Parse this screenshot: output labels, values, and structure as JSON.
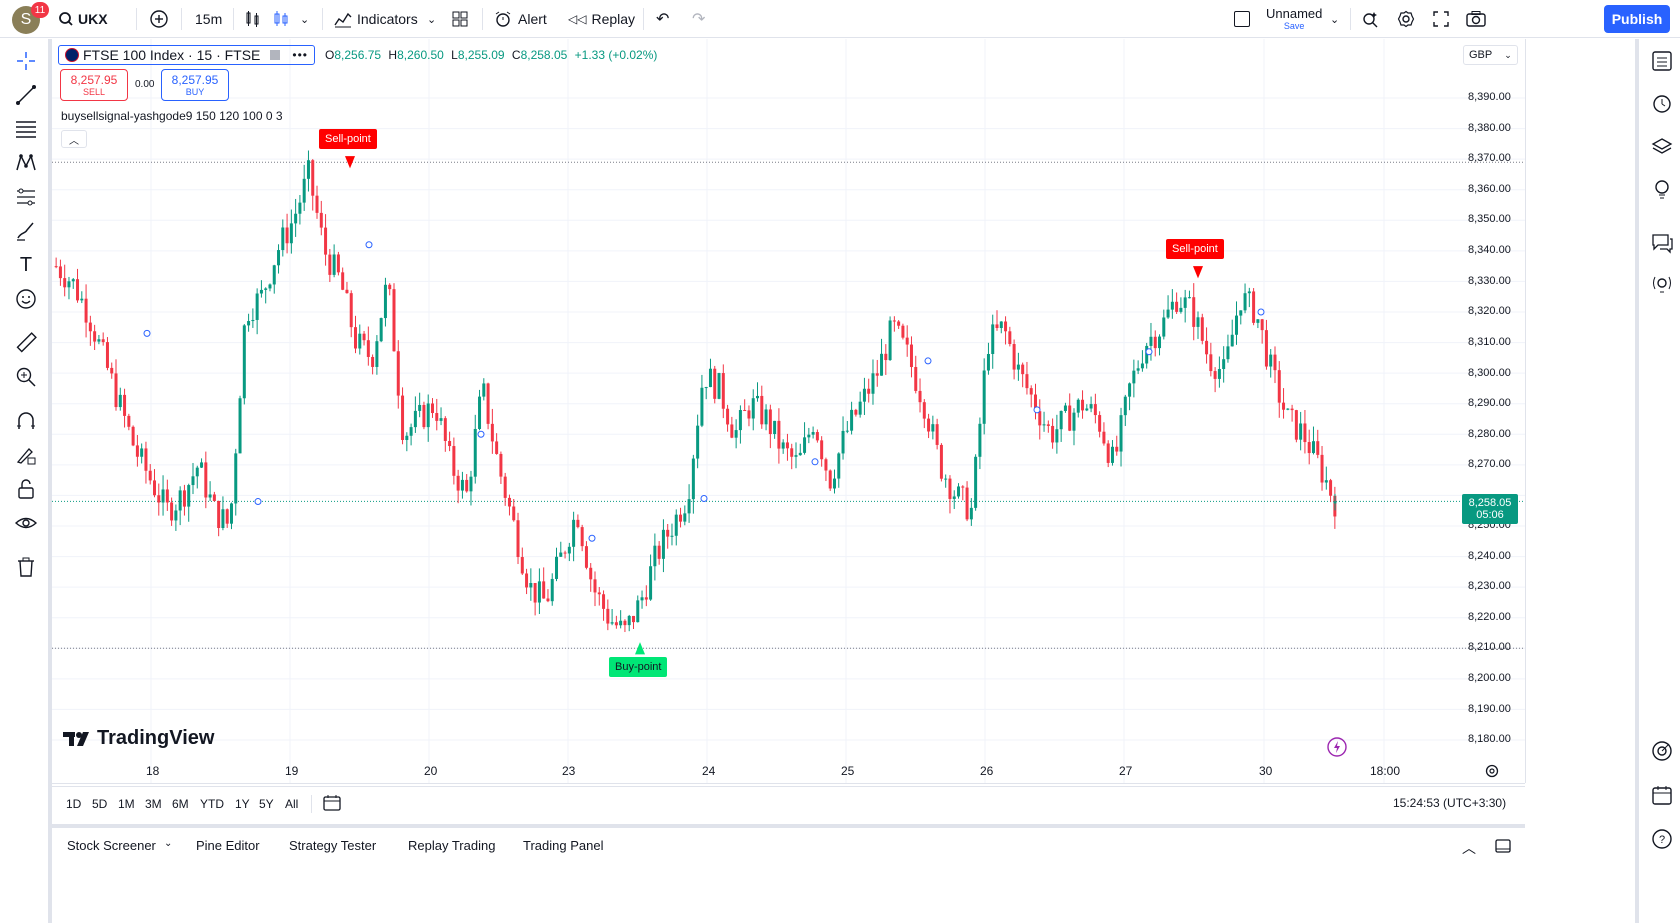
{
  "topbar": {
    "avatar_letter": "S",
    "notifications": "11",
    "symbol": "UKX",
    "interval": "15m",
    "indicators_label": "Indicators",
    "alert_label": "Alert",
    "replay_label": "Replay",
    "layout_name": "Unnamed",
    "layout_save": "Save",
    "publish_label": "Publish"
  },
  "legend": {
    "symbol_title": "FTSE 100 Index · 15 · FTSE",
    "o_label": "O",
    "o_value": "8,256.75",
    "h_label": "H",
    "h_value": "8,260.50",
    "l_label": "L",
    "l_value": "8,255.09",
    "c_label": "C",
    "c_value": "8,258.05",
    "change": "+1.33 (+0.02%)",
    "sell_price": "8,257.95",
    "sell_label": "SELL",
    "spread": "0.00",
    "buy_price": "8,257.95",
    "buy_label": "BUY",
    "indicator": "buysellsignal-yashgode9 150 120 100 0 3"
  },
  "currency": "GBP",
  "price_axis": [
    "8,390.00",
    "8,380.00",
    "8,370.00",
    "8,360.00",
    "8,350.00",
    "8,340.00",
    "8,330.00",
    "8,320.00",
    "8,310.00",
    "8,300.00",
    "8,290.00",
    "8,280.00",
    "8,270.00",
    "8,250.00",
    "8,240.00",
    "8,230.00",
    "8,220.00",
    "8,210.00",
    "8,200.00",
    "8,190.00",
    "8,180.00"
  ],
  "last_price": {
    "price": "8,258.05",
    "countdown": "05:06"
  },
  "time_axis": [
    "18",
    "19",
    "20",
    "23",
    "24",
    "25",
    "26",
    "27",
    "30",
    "18:00"
  ],
  "signals": {
    "sell1": "Sell-point",
    "sell2": "Sell-point",
    "buy1": "Buy-point"
  },
  "logo_text": "TradingView",
  "ranges": [
    "1D",
    "5D",
    "1M",
    "3M",
    "6M",
    "YTD",
    "1Y",
    "5Y",
    "All"
  ],
  "clock": "15:24:53 (UTC+3:30)",
  "bottom_tabs": [
    "Stock Screener",
    "Pine Editor",
    "Strategy Tester",
    "Replay Trading",
    "Trading Panel"
  ],
  "colors": {
    "up": "#089981",
    "down": "#f23645",
    "accent": "#2962ff",
    "sell_signal": "#ff0000",
    "buy_signal": "#00e676"
  },
  "chart_data": {
    "type": "candlestick",
    "symbol": "FTSE 100 Index",
    "interval": "15",
    "ylim": [
      8180,
      8395
    ],
    "x": [
      "18",
      "19",
      "20",
      "23",
      "24",
      "25",
      "26",
      "27",
      "30"
    ],
    "close_path": [
      8335,
      8330,
      8320,
      8305,
      8290,
      8275,
      8265,
      8255,
      8260,
      8270,
      8255,
      8250,
      8320,
      8325,
      8340,
      8350,
      8365,
      8340,
      8330,
      8310,
      8305,
      8330,
      8280,
      8285,
      8290,
      8270,
      8260,
      8295,
      8270,
      8250,
      8230,
      8225,
      8240,
      8255,
      8230,
      8220,
      8215,
      8225,
      8240,
      8250,
      8260,
      8300,
      8295,
      8280,
      8290,
      8285,
      8275,
      8270,
      8285,
      8265,
      8280,
      8290,
      8300,
      8315,
      8305,
      8290,
      8270,
      8260,
      8255,
      8310,
      8315,
      8300,
      8290,
      8280,
      8285,
      8290,
      8285,
      8270,
      8295,
      8310,
      8315,
      8325,
      8320,
      8305,
      8300,
      8325,
      8320,
      8300,
      8285,
      8280,
      8270,
      8258
    ],
    "sell_points": [
      8366,
      8333
    ],
    "buy_points": [
      8212
    ],
    "last": 8258.05
  }
}
